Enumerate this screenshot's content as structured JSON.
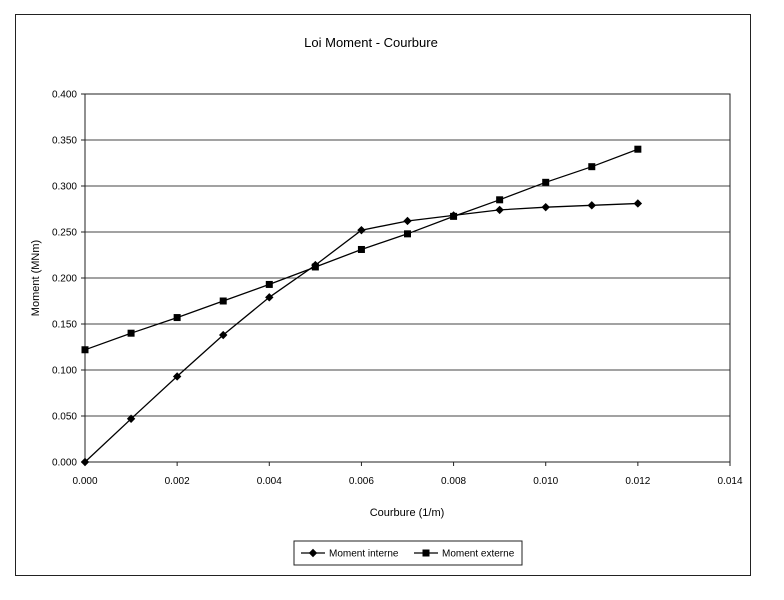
{
  "chart_data": {
    "type": "line",
    "title": "Loi Moment - Courbure",
    "xlabel": "Courbure (1/m)",
    "ylabel": "Moment (MNm)",
    "xlim": [
      0,
      0.014
    ],
    "ylim": [
      0,
      0.4
    ],
    "x_ticks": [
      "0.000",
      "0.002",
      "0.004",
      "0.006",
      "0.008",
      "0.010",
      "0.012",
      "0.014"
    ],
    "y_ticks": [
      "0.000",
      "0.050",
      "0.100",
      "0.150",
      "0.200",
      "0.250",
      "0.300",
      "0.350",
      "0.400"
    ],
    "grid": "horizontal",
    "legend_position": "bottom",
    "series": [
      {
        "name": "Moment interne",
        "marker": "diamond",
        "color": "#000000",
        "x": [
          0,
          0.001,
          0.002,
          0.003,
          0.004,
          0.005,
          0.006,
          0.007,
          0.008,
          0.009,
          0.01,
          0.011,
          0.012
        ],
        "y": [
          0.0,
          0.047,
          0.093,
          0.138,
          0.179,
          0.214,
          0.252,
          0.262,
          0.268,
          0.274,
          0.277,
          0.279,
          0.281
        ]
      },
      {
        "name": "Moment externe",
        "marker": "square",
        "color": "#000000",
        "x": [
          0,
          0.001,
          0.002,
          0.003,
          0.004,
          0.005,
          0.006,
          0.007,
          0.008,
          0.009,
          0.01,
          0.011,
          0.012
        ],
        "y": [
          0.122,
          0.14,
          0.157,
          0.175,
          0.193,
          0.212,
          0.231,
          0.248,
          0.267,
          0.285,
          0.304,
          0.321,
          0.34
        ]
      }
    ]
  }
}
